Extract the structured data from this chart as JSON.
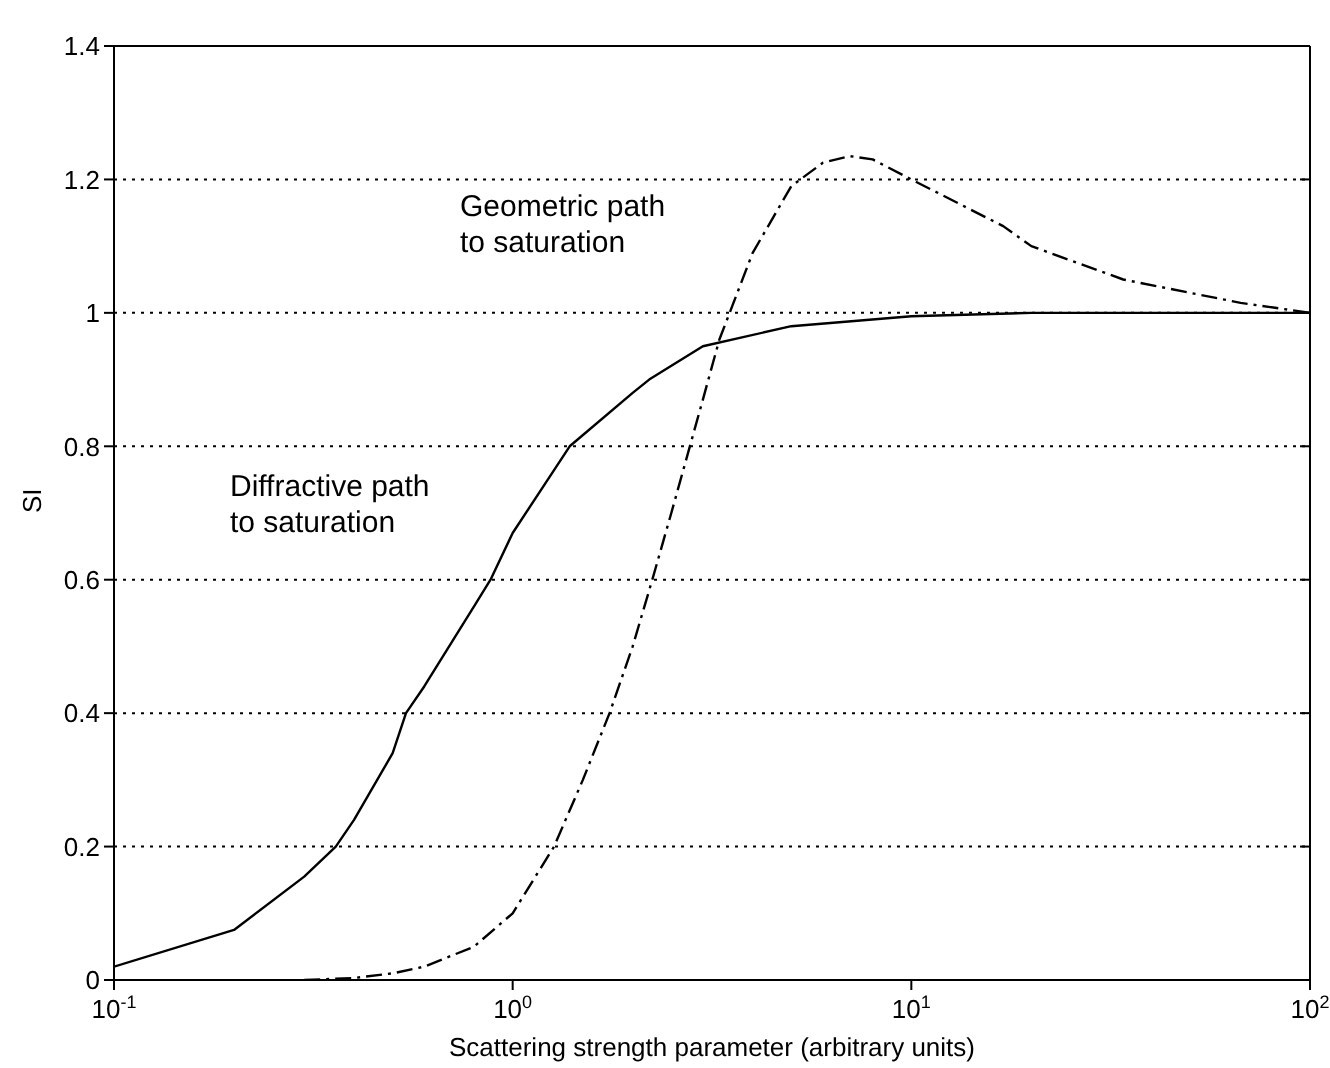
{
  "chart_data": {
    "type": "line",
    "xlabel": "Scattering strength parameter (arbitrary units)",
    "ylabel": "SI",
    "log": "x",
    "xlim": [
      0.1,
      100
    ],
    "xticks": [
      {
        "value": 0.1,
        "label": "10$^{-1}$"
      },
      {
        "value": 1,
        "label": "10$^{0}$"
      },
      {
        "value": 10,
        "label": "10$^{1}$"
      },
      {
        "value": 100,
        "label": "10$^{2}$"
      }
    ],
    "ylim": [
      0,
      1.4
    ],
    "yticks": [
      0,
      0.2,
      0.4,
      0.6,
      0.8,
      1,
      1.2,
      1.4
    ],
    "grid": "y",
    "marker": "none",
    "series": [
      {
        "color": "#000000",
        "line_style": "solid",
        "x": [
          0.1,
          0.2,
          0.3,
          0.36,
          0.4,
          0.5,
          0.54,
          0.6,
          0.8,
          0.88,
          1,
          1.39,
          2,
          2.2,
          3,
          5,
          10,
          20,
          50,
          100
        ],
        "values": [
          0.02,
          0.075,
          0.155,
          0.2,
          0.24,
          0.34,
          0.4,
          0.44,
          0.56,
          0.6,
          0.67,
          0.8,
          0.88,
          0.9,
          0.95,
          0.98,
          0.995,
          1,
          1,
          1
        ]
      },
      {
        "color": "#000000",
        "line_style": "dashdot",
        "x": [
          0.3,
          0.4,
          0.5,
          0.6,
          0.8,
          1,
          1.27,
          1.5,
          1.75,
          2,
          2.24,
          2.5,
          3,
          3.3,
          4,
          5,
          6,
          7,
          8,
          10,
          17,
          20,
          34,
          50,
          67,
          100
        ],
        "values": [
          0,
          0.003,
          0.01,
          0.02,
          0.05,
          0.1,
          0.2,
          0.3,
          0.4,
          0.5,
          0.6,
          0.7,
          0.87,
          0.96,
          1.09,
          1.19,
          1.225,
          1.235,
          1.23,
          1.2,
          1.13,
          1.1,
          1.05,
          1.03,
          1.015,
          1
        ]
      }
    ],
    "annotations": [
      "Geometric path\nto saturation",
      "Diffractive path\nto saturation"
    ]
  }
}
